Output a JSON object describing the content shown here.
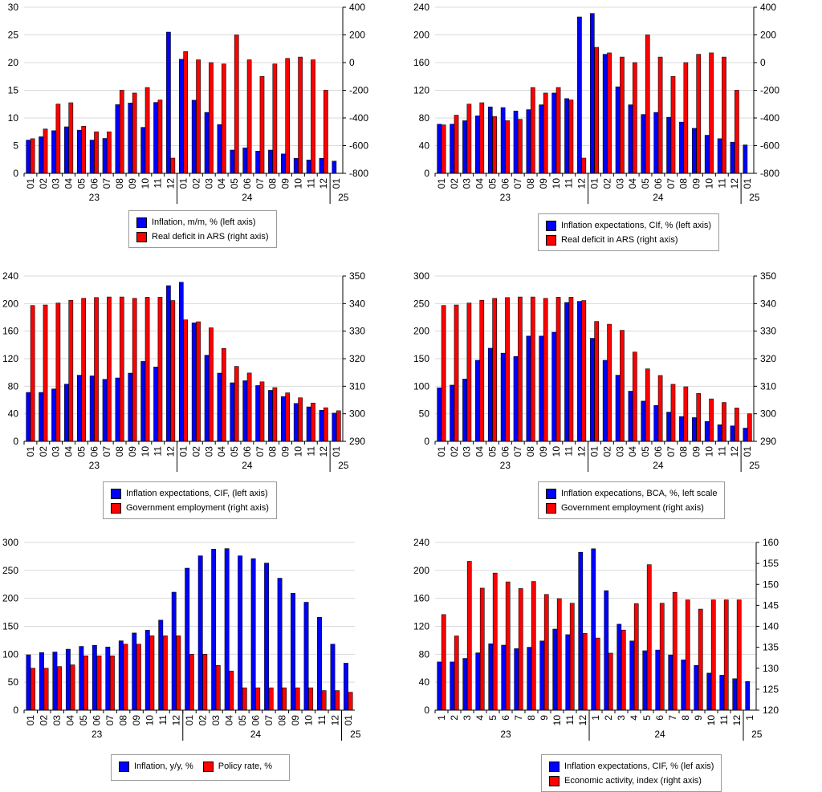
{
  "colors": {
    "blue": "#0000ff",
    "red": "#ff0000",
    "grid": "#d9d9d9"
  },
  "chart_data": [
    {
      "type": "bar",
      "categories": [
        "01",
        "02",
        "03",
        "04",
        "05",
        "06",
        "07",
        "08",
        "09",
        "10",
        "11",
        "12",
        "01",
        "02",
        "03",
        "04",
        "05",
        "06",
        "07",
        "08",
        "09",
        "10",
        "11",
        "12",
        "01"
      ],
      "year_labels": [
        "23",
        "24",
        "25"
      ],
      "ylim": [
        0,
        30
      ],
      "yticks": [
        "0",
        "5",
        "10",
        "15",
        "20",
        "25",
        "30"
      ],
      "y2lim": [
        -800,
        400
      ],
      "y2ticks": [
        "-800",
        "-600",
        "-400",
        "-200",
        "0",
        "200",
        "400"
      ],
      "grid": true,
      "legend_position": "bottom",
      "series": [
        {
          "name": "Inflation, m/m, % (left axis)",
          "axis": "left",
          "color": "#0000ff",
          "values": [
            6.0,
            6.6,
            7.7,
            8.4,
            7.8,
            6.0,
            6.3,
            12.4,
            12.7,
            8.3,
            12.8,
            25.5,
            20.6,
            13.2,
            11.0,
            8.8,
            4.2,
            4.6,
            4.0,
            4.2,
            3.5,
            2.7,
            2.4,
            2.7,
            2.2
          ]
        },
        {
          "name": "Real deficit in ARS (right axis)",
          "axis": "right",
          "color": "#ff0000",
          "values": [
            -550,
            -480,
            -300,
            -290,
            -460,
            -500,
            -500,
            -200,
            -220,
            -180,
            -270,
            -690,
            80,
            20,
            0,
            -10,
            200,
            20,
            -100,
            -10,
            30,
            40,
            20,
            -200,
            null
          ]
        }
      ]
    },
    {
      "type": "bar",
      "categories": [
        "01",
        "02",
        "03",
        "04",
        "05",
        "06",
        "07",
        "08",
        "09",
        "10",
        "11",
        "12",
        "01",
        "02",
        "03",
        "04",
        "05",
        "06",
        "07",
        "08",
        "09",
        "10",
        "11",
        "12",
        "01"
      ],
      "year_labels": [
        "23",
        "24",
        "25"
      ],
      "ylim": [
        0,
        240
      ],
      "yticks": [
        "0",
        "40",
        "80",
        "120",
        "160",
        "200",
        "240"
      ],
      "y2lim": [
        -800,
        400
      ],
      "y2ticks": [
        "-800",
        "-600",
        "-400",
        "-200",
        "0",
        "200",
        "400"
      ],
      "grid": true,
      "legend_position": "bottom",
      "series": [
        {
          "name": "Inflation expectations, CIf, % (left axis)",
          "axis": "left",
          "color": "#0000ff",
          "values": [
            71,
            71,
            76,
            83,
            96,
            95,
            90,
            92,
            99,
            116,
            108,
            226,
            231,
            172,
            125,
            99,
            85,
            88,
            81,
            74,
            65,
            55,
            50,
            45,
            41
          ]
        },
        {
          "name": "Real deficit in ARS (right axis)",
          "axis": "right",
          "color": "#ff0000",
          "values": [
            -450,
            -380,
            -300,
            -290,
            -390,
            -420,
            -410,
            -180,
            -220,
            -180,
            -270,
            -690,
            110,
            70,
            40,
            0,
            200,
            40,
            -100,
            0,
            60,
            70,
            40,
            -200,
            null
          ]
        }
      ]
    },
    {
      "type": "bar",
      "categories": [
        "01",
        "02",
        "03",
        "04",
        "05",
        "06",
        "07",
        "08",
        "09",
        "10",
        "11",
        "12",
        "01",
        "02",
        "03",
        "04",
        "05",
        "06",
        "07",
        "08",
        "09",
        "10",
        "11",
        "12",
        "01"
      ],
      "year_labels": [
        "23",
        "24",
        "25"
      ],
      "ylim": [
        0,
        240
      ],
      "yticks": [
        "0",
        "40",
        "80",
        "120",
        "160",
        "200",
        "240"
      ],
      "y2lim": [
        290,
        350
      ],
      "y2ticks": [
        "290",
        "300",
        "310",
        "320",
        "330",
        "340",
        "350"
      ],
      "grid": true,
      "legend_position": "bottom",
      "series": [
        {
          "name": "Inflation expectations, CIF, (left axis)",
          "axis": "left",
          "color": "#0000ff",
          "values": [
            71,
            71,
            76,
            83,
            96,
            95,
            90,
            92,
            99,
            116,
            108,
            226,
            231,
            172,
            125,
            99,
            85,
            88,
            81,
            74,
            65,
            55,
            50,
            45,
            41
          ]
        },
        {
          "name": "Government employment (right axis)",
          "axis": "right",
          "color": "#ff0000",
          "values": [
            339.3,
            339.5,
            340.2,
            341.2,
            341.9,
            342.2,
            342.4,
            342.4,
            341.9,
            342.3,
            342.3,
            341.1,
            334.1,
            333.4,
            331.2,
            323.7,
            317.2,
            314.8,
            311.6,
            309.5,
            307.6,
            305.8,
            303.9,
            302.2,
            301.1
          ]
        }
      ]
    },
    {
      "type": "bar",
      "categories": [
        "01",
        "02",
        "03",
        "04",
        "05",
        "06",
        "07",
        "08",
        "09",
        "10",
        "11",
        "12",
        "01",
        "02",
        "03",
        "04",
        "05",
        "06",
        "07",
        "08",
        "09",
        "10",
        "11",
        "12",
        "01"
      ],
      "year_labels": [
        "23",
        "24",
        "25"
      ],
      "ylim": [
        0,
        300
      ],
      "yticks": [
        "0",
        "50",
        "100",
        "150",
        "200",
        "250",
        "300"
      ],
      "y2lim": [
        290,
        350
      ],
      "y2ticks": [
        "290",
        "300",
        "310",
        "320",
        "330",
        "340",
        "350"
      ],
      "grid": true,
      "legend_position": "bottom",
      "series": [
        {
          "name": "Inflation expecations, BCA, %, left scale",
          "axis": "left",
          "color": "#0000ff",
          "values": [
            97,
            102,
            113,
            147,
            169,
            160,
            154,
            191,
            191,
            198,
            252,
            254,
            187,
            147,
            120,
            91,
            73,
            65,
            53,
            45,
            43,
            36,
            30,
            28,
            24
          ]
        },
        {
          "name": "Government employment (right axis)",
          "axis": "right",
          "color": "#ff0000",
          "values": [
            339.3,
            339.5,
            340.2,
            341.2,
            341.9,
            342.2,
            342.4,
            342.4,
            341.9,
            342.3,
            342.3,
            341.1,
            333.5,
            332.5,
            330.3,
            322.4,
            316.3,
            313.9,
            310.7,
            309.8,
            307.4,
            305.4,
            304.1,
            302.1,
            300.0
          ]
        }
      ]
    },
    {
      "type": "bar",
      "categories": [
        "01",
        "02",
        "03",
        "04",
        "05",
        "06",
        "07",
        "08",
        "09",
        "10",
        "11",
        "12",
        "01",
        "02",
        "03",
        "04",
        "05",
        "06",
        "07",
        "08",
        "09",
        "10",
        "11",
        "12",
        "01"
      ],
      "year_labels": [
        "23",
        "24",
        "25"
      ],
      "ylim": [
        0,
        300
      ],
      "yticks": [
        "0",
        "50",
        "100",
        "150",
        "200",
        "250",
        "300"
      ],
      "grid": true,
      "legend_position": "bottom",
      "series": [
        {
          "name": "Inflation, y/y, %",
          "axis": "left",
          "color": "#0000ff",
          "values": [
            99,
            103,
            104,
            109,
            114,
            116,
            113,
            124,
            138,
            143,
            161,
            211,
            254,
            276,
            288,
            289,
            276,
            271,
            263,
            236,
            209,
            193,
            166,
            118,
            84
          ]
        },
        {
          "name": "Policy rate, %",
          "axis": "left",
          "color": "#ff0000",
          "values": [
            75,
            75,
            78,
            81,
            97,
            97,
            97,
            118,
            118,
            133,
            133,
            133,
            100,
            100,
            80,
            70,
            40,
            40,
            40,
            40,
            40,
            40,
            35,
            35,
            32
          ]
        }
      ]
    },
    {
      "type": "bar",
      "categories": [
        "1",
        "2",
        "3",
        "4",
        "5",
        "6",
        "7",
        "8",
        "9",
        "10",
        "11",
        "12",
        "1",
        "2",
        "3",
        "4",
        "5",
        "6",
        "7",
        "8",
        "9",
        "10",
        "11",
        "12",
        "1"
      ],
      "year_labels": [
        "23",
        "24",
        "25"
      ],
      "ylim": [
        0,
        240
      ],
      "yticks": [
        "0",
        "40",
        "80",
        "120",
        "160",
        "200",
        "240"
      ],
      "y2lim": [
        120,
        160
      ],
      "y2ticks": [
        "120",
        "125",
        "130",
        "135",
        "140",
        "145",
        "150",
        "155",
        "160"
      ],
      "grid": true,
      "legend_position": "bottom",
      "series": [
        {
          "name": "Inflation expectations, CIF, % (lef axis)",
          "axis": "left",
          "color": "#0000ff",
          "values": [
            69,
            69,
            74,
            82,
            95,
            93,
            88,
            90,
            99,
            116,
            108,
            226,
            231,
            171,
            123,
            99,
            85,
            86,
            79,
            72,
            64,
            53,
            50,
            45,
            41
          ]
        },
        {
          "name": "Economic activity, index (right axis)",
          "axis": "right",
          "color": "#ff0000",
          "values": [
            142.8,
            137.7,
            155.5,
            149.1,
            152.7,
            150.6,
            149.0,
            150.7,
            147.6,
            146.6,
            145.5,
            138.3,
            137.2,
            133.6,
            139.1,
            145.4,
            154.7,
            145.5,
            148.1,
            146.3,
            144.1,
            146.3,
            146.3,
            146.3,
            null
          ]
        }
      ]
    }
  ]
}
